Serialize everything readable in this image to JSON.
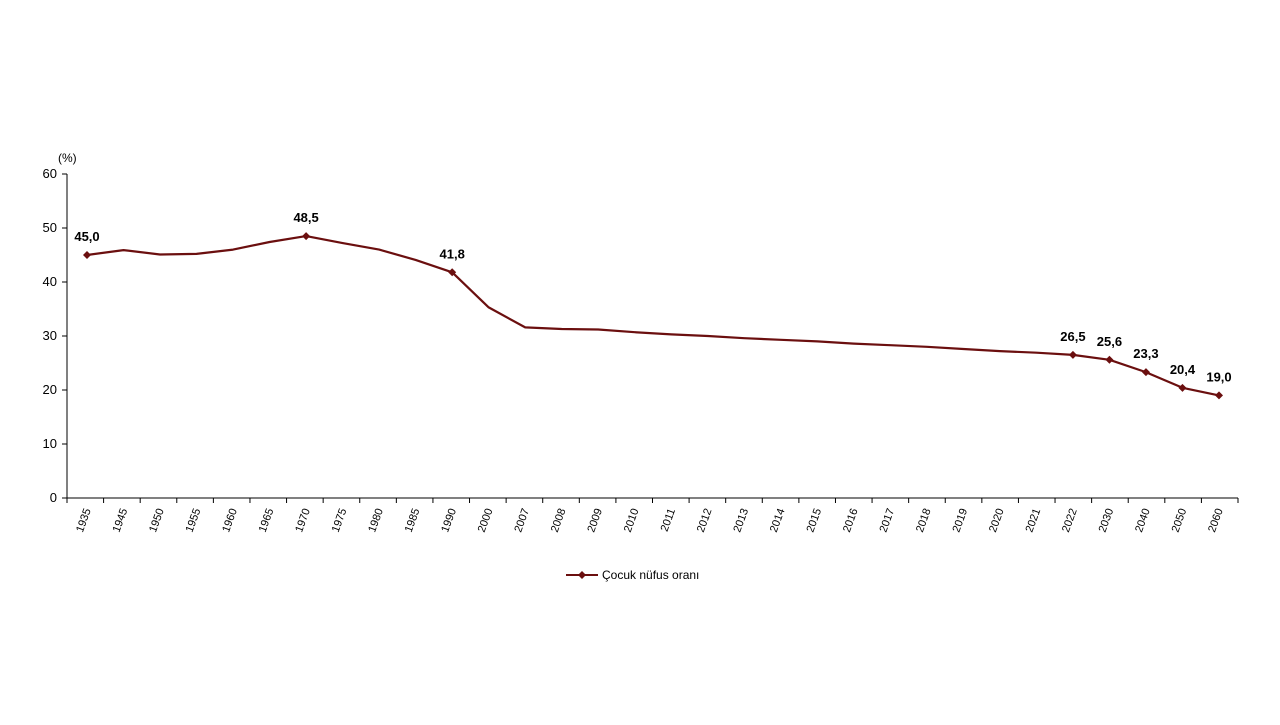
{
  "chart_data": {
    "type": "line",
    "unit_label": "(%)",
    "ylim": [
      0,
      60
    ],
    "y_ticks": [
      0,
      10,
      20,
      30,
      40,
      50,
      60
    ],
    "grid": false,
    "legend_position": "bottom-center",
    "line_color": "#6b0f0f",
    "categories": [
      "1935",
      "1945",
      "1950",
      "1955",
      "1960",
      "1965",
      "1970",
      "1975",
      "1980",
      "1985",
      "1990",
      "2000",
      "2007",
      "2008",
      "2009",
      "2010",
      "2011",
      "2012",
      "2013",
      "2014",
      "2015",
      "2016",
      "2017",
      "2018",
      "2019",
      "2020",
      "2021",
      "2022",
      "2030",
      "2040",
      "2050",
      "2060"
    ],
    "series": [
      {
        "name": "Çocuk nüfus oranı",
        "values": [
          45.0,
          45.9,
          45.1,
          45.2,
          46.0,
          47.4,
          48.5,
          47.2,
          46.0,
          44.1,
          41.8,
          35.3,
          31.6,
          31.3,
          31.2,
          30.7,
          30.3,
          30.0,
          29.6,
          29.3,
          29.0,
          28.6,
          28.3,
          28.0,
          27.6,
          27.2,
          26.9,
          26.5,
          25.6,
          23.3,
          20.4,
          19.0
        ]
      }
    ],
    "data_labels": [
      {
        "index": 0,
        "text": "45,0"
      },
      {
        "index": 6,
        "text": "48,5"
      },
      {
        "index": 10,
        "text": "41,8"
      },
      {
        "index": 27,
        "text": "26,5"
      },
      {
        "index": 28,
        "text": "25,6"
      },
      {
        "index": 29,
        "text": "23,3"
      },
      {
        "index": 30,
        "text": "20,4"
      },
      {
        "index": 31,
        "text": "19,0"
      }
    ]
  }
}
